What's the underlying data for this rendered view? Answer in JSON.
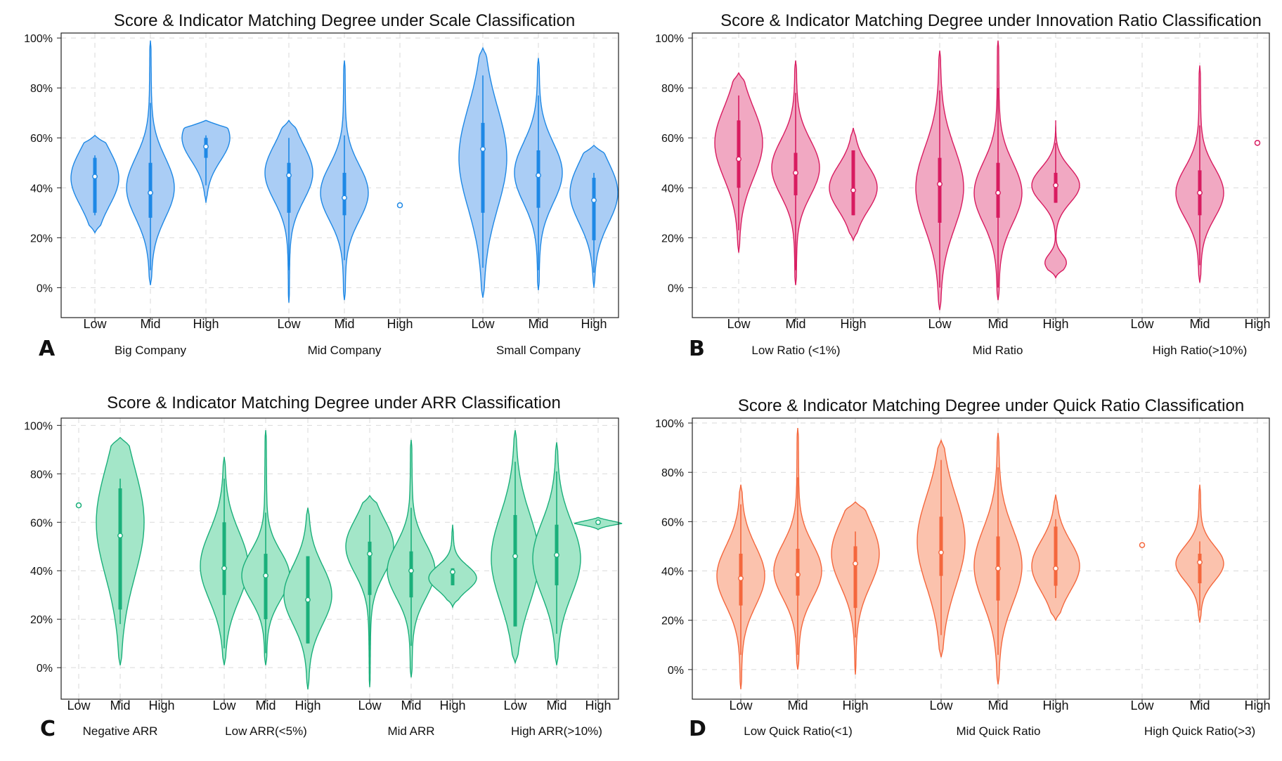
{
  "chart_data": [
    {
      "panel": "A",
      "type": "violin",
      "title": "Score & Indicator Matching Degree under Scale Classification",
      "ylim": [
        -0.12,
        1.02
      ],
      "yticks": [
        "0%",
        "20%",
        "40%",
        "60%",
        "80%",
        "100%"
      ],
      "color": "#1e88e5",
      "fill": "#aacdf5",
      "groups": [
        {
          "label": "Big Company",
          "levels": [
            {
              "label": "Low",
              "min": 0.22,
              "q1": 0.3,
              "median": 0.445,
              "q3": 0.52,
              "max": 0.61,
              "wlo": 0.29,
              "whi": 0.53,
              "peak": 0.44,
              "spread": 0.11,
              "kind": "normal"
            },
            {
              "label": "Mid",
              "min": 0.01,
              "q1": 0.28,
              "median": 0.38,
              "q3": 0.5,
              "max": 0.99,
              "wlo": 0.07,
              "whi": 0.74,
              "peak": 0.4,
              "spread": 0.12,
              "kind": "normal"
            },
            {
              "label": "High",
              "min": 0.34,
              "q1": 0.52,
              "median": 0.565,
              "q3": 0.6,
              "max": 0.67,
              "wlo": 0.41,
              "whi": 0.61,
              "peak": 0.6,
              "spread": 0.09,
              "kind": "normal"
            }
          ]
        },
        {
          "label": "Mid Company",
          "levels": [
            {
              "label": "Low",
              "min": -0.06,
              "q1": 0.3,
              "median": 0.45,
              "q3": 0.5,
              "max": 0.67,
              "wlo": 0.07,
              "whi": 0.6,
              "peak": 0.46,
              "spread": 0.11,
              "kind": "normal"
            },
            {
              "label": "Mid",
              "min": -0.05,
              "q1": 0.29,
              "median": 0.36,
              "q3": 0.46,
              "max": 0.91,
              "wlo": 0.11,
              "whi": 0.61,
              "peak": 0.38,
              "spread": 0.11,
              "kind": "normal"
            },
            {
              "label": "High",
              "point": 0.33,
              "kind": "point"
            }
          ]
        },
        {
          "label": "Small Company",
          "levels": [
            {
              "label": "Low",
              "min": -0.04,
              "q1": 0.3,
              "median": 0.555,
              "q3": 0.66,
              "max": 0.96,
              "wlo": 0.08,
              "whi": 0.85,
              "peak": 0.52,
              "spread": 0.2,
              "kind": "normal"
            },
            {
              "label": "Mid",
              "min": -0.01,
              "q1": 0.32,
              "median": 0.45,
              "q3": 0.55,
              "max": 0.92,
              "wlo": 0.07,
              "whi": 0.77,
              "peak": 0.46,
              "spread": 0.12,
              "kind": "normal"
            },
            {
              "label": "High",
              "min": 0.0,
              "q1": 0.19,
              "median": 0.35,
              "q3": 0.44,
              "max": 0.57,
              "wlo": 0.06,
              "whi": 0.46,
              "peak": 0.38,
              "spread": 0.12,
              "kind": "normal"
            }
          ]
        }
      ]
    },
    {
      "panel": "B",
      "type": "violin",
      "title": "Score & Indicator Matching Degree under Innovation Ratio Classification",
      "ylim": [
        -0.12,
        1.02
      ],
      "yticks": [
        "0%",
        "20%",
        "40%",
        "60%",
        "80%",
        "100%"
      ],
      "color": "#d81b60",
      "fill": "#f1a8c2",
      "groups": [
        {
          "label": "Low Ratio (<1%)",
          "levels": [
            {
              "label": "Low",
              "min": 0.14,
              "q1": 0.4,
              "median": 0.515,
              "q3": 0.67,
              "max": 0.86,
              "wlo": 0.23,
              "whi": 0.77,
              "peak": 0.58,
              "spread": 0.14,
              "kind": "normal"
            },
            {
              "label": "Mid",
              "min": 0.01,
              "q1": 0.37,
              "median": 0.46,
              "q3": 0.54,
              "max": 0.91,
              "wlo": 0.07,
              "whi": 0.78,
              "peak": 0.48,
              "spread": 0.11,
              "kind": "normal"
            },
            {
              "label": "High",
              "min": 0.19,
              "q1": 0.29,
              "median": 0.39,
              "q3": 0.55,
              "max": 0.64,
              "wlo": 0.29,
              "whi": 0.55,
              "peak": 0.4,
              "spread": 0.09,
              "kind": "normal"
            }
          ]
        },
        {
          "label": "Mid Ratio",
          "levels": [
            {
              "label": "Low",
              "min": -0.09,
              "q1": 0.26,
              "median": 0.415,
              "q3": 0.52,
              "max": 0.95,
              "wlo": 0.0,
              "whi": 0.79,
              "peak": 0.4,
              "spread": 0.16,
              "kind": "normal"
            },
            {
              "label": "Mid",
              "min": -0.05,
              "q1": 0.28,
              "median": 0.38,
              "q3": 0.5,
              "max": 0.99,
              "wlo": 0.0,
              "whi": 0.8,
              "peak": 0.38,
              "spread": 0.12,
              "kind": "normal"
            },
            {
              "label": "High",
              "min": 0.04,
              "q1": 0.34,
              "median": 0.41,
              "q3": 0.46,
              "max": 0.67,
              "wlo": 0.34,
              "whi": 0.58,
              "peak": 0.41,
              "spread": 0.07,
              "kind": "bimodal"
            }
          ]
        },
        {
          "label": "High Ratio(>10%)",
          "levels": [
            {
              "label": "Low",
              "kind": "empty"
            },
            {
              "label": "Mid",
              "min": 0.02,
              "q1": 0.29,
              "median": 0.38,
              "q3": 0.47,
              "max": 0.89,
              "wlo": 0.09,
              "whi": 0.65,
              "peak": 0.38,
              "spread": 0.1,
              "kind": "normal"
            },
            {
              "label": "High",
              "point": 0.58,
              "kind": "point"
            }
          ]
        }
      ]
    },
    {
      "panel": "C",
      "type": "violin",
      "title": "Score & Indicator Matching Degree under ARR Classification",
      "ylim": [
        -0.13,
        1.03
      ],
      "yticks": [
        "0%",
        "20%",
        "40%",
        "60%",
        "80%",
        "100%"
      ],
      "color": "#1aaf7a",
      "fill": "#a3e6c8",
      "groups": [
        {
          "label": "Negative ARR",
          "levels": [
            {
              "label": "Low",
              "point": 0.67,
              "kind": "point"
            },
            {
              "label": "Mid",
              "min": 0.01,
              "q1": 0.24,
              "median": 0.545,
              "q3": 0.74,
              "max": 0.95,
              "wlo": 0.18,
              "whi": 0.78,
              "peak": 0.6,
              "spread": 0.22,
              "kind": "normal"
            },
            {
              "label": "High",
              "kind": "empty"
            }
          ]
        },
        {
          "label": "Low ARR(<5%)",
          "levels": [
            {
              "label": "Low",
              "min": 0.01,
              "q1": 0.3,
              "median": 0.41,
              "q3": 0.6,
              "max": 0.87,
              "wlo": 0.08,
              "whi": 0.78,
              "peak": 0.42,
              "spread": 0.14,
              "kind": "normal"
            },
            {
              "label": "Mid",
              "min": 0.01,
              "q1": 0.2,
              "median": 0.38,
              "q3": 0.47,
              "max": 0.98,
              "wlo": 0.06,
              "whi": 0.64,
              "peak": 0.38,
              "spread": 0.1,
              "kind": "normal"
            },
            {
              "label": "High",
              "min": -0.09,
              "q1": 0.1,
              "median": 0.28,
              "q3": 0.46,
              "max": 0.66,
              "wlo": 0.1,
              "whi": 0.46,
              "peak": 0.3,
              "spread": 0.12,
              "kind": "normal"
            }
          ]
        },
        {
          "label": "Mid ARR",
          "levels": [
            {
              "label": "Low",
              "min": -0.08,
              "q1": 0.3,
              "median": 0.47,
              "q3": 0.52,
              "max": 0.71,
              "wlo": 0.01,
              "whi": 0.63,
              "peak": 0.5,
              "spread": 0.11,
              "kind": "normal"
            },
            {
              "label": "Mid",
              "min": -0.04,
              "q1": 0.29,
              "median": 0.4,
              "q3": 0.48,
              "max": 0.94,
              "wlo": 0.09,
              "whi": 0.66,
              "peak": 0.4,
              "spread": 0.11,
              "kind": "normal"
            },
            {
              "label": "High",
              "min": 0.25,
              "q1": 0.34,
              "median": 0.395,
              "q3": 0.41,
              "max": 0.59,
              "wlo": 0.34,
              "whi": 0.41,
              "peak": 0.37,
              "spread": 0.05,
              "kind": "normal"
            }
          ]
        },
        {
          "label": "High ARR(>10%)",
          "levels": [
            {
              "label": "Low",
              "min": 0.02,
              "q1": 0.17,
              "median": 0.46,
              "q3": 0.63,
              "max": 0.98,
              "wlo": 0.17,
              "whi": 0.85,
              "peak": 0.45,
              "spread": 0.18,
              "kind": "normal"
            },
            {
              "label": "Mid",
              "min": 0.01,
              "q1": 0.34,
              "median": 0.465,
              "q3": 0.59,
              "max": 0.93,
              "wlo": 0.14,
              "whi": 0.81,
              "peak": 0.45,
              "spread": 0.15,
              "kind": "normal"
            },
            {
              "label": "High",
              "min": 0.57,
              "q1": 0.59,
              "median": 0.6,
              "q3": 0.61,
              "max": 0.62,
              "wlo": 0.59,
              "whi": 0.61,
              "peak": 0.6,
              "spread": 0.02,
              "kind": "normal"
            }
          ]
        }
      ]
    },
    {
      "panel": "D",
      "type": "violin",
      "title": "Score & Indicator Matching Degree under Quick Ratio Classification",
      "ylim": [
        -0.12,
        1.02
      ],
      "yticks": [
        "0%",
        "20%",
        "40%",
        "60%",
        "80%",
        "100%"
      ],
      "color": "#f4673d",
      "fill": "#fbc2ad",
      "groups": [
        {
          "label": "Low Quick Ratio(<1)",
          "levels": [
            {
              "label": "Low",
              "min": -0.08,
              "q1": 0.26,
              "median": 0.37,
              "q3": 0.47,
              "max": 0.75,
              "wlo": 0.06,
              "whi": 0.67,
              "peak": 0.38,
              "spread": 0.12,
              "kind": "normal"
            },
            {
              "label": "Mid",
              "min": 0.0,
              "q1": 0.3,
              "median": 0.385,
              "q3": 0.49,
              "max": 0.98,
              "wlo": 0.06,
              "whi": 0.78,
              "peak": 0.4,
              "spread": 0.11,
              "kind": "normal"
            },
            {
              "label": "High",
              "min": -0.02,
              "q1": 0.25,
              "median": 0.43,
              "q3": 0.5,
              "max": 0.68,
              "wlo": 0.13,
              "whi": 0.56,
              "peak": 0.47,
              "spread": 0.13,
              "kind": "normal"
            }
          ]
        },
        {
          "label": "Mid Quick Ratio",
          "levels": [
            {
              "label": "Low",
              "min": 0.05,
              "q1": 0.38,
              "median": 0.475,
              "q3": 0.62,
              "max": 0.93,
              "wlo": 0.14,
              "whi": 0.85,
              "peak": 0.52,
              "spread": 0.18,
              "kind": "normal"
            },
            {
              "label": "Mid",
              "min": -0.06,
              "q1": 0.28,
              "median": 0.41,
              "q3": 0.54,
              "max": 0.96,
              "wlo": 0.06,
              "whi": 0.82,
              "peak": 0.42,
              "spread": 0.15,
              "kind": "normal"
            },
            {
              "label": "High",
              "min": 0.2,
              "q1": 0.34,
              "median": 0.41,
              "q3": 0.58,
              "max": 0.71,
              "wlo": 0.29,
              "whi": 0.61,
              "peak": 0.42,
              "spread": 0.1,
              "kind": "normal"
            }
          ]
        },
        {
          "label": "High Quick Ratio(>3)",
          "levels": [
            {
              "label": "Low",
              "point": 0.505,
              "kind": "point"
            },
            {
              "label": "Mid",
              "min": 0.19,
              "q1": 0.35,
              "median": 0.435,
              "q3": 0.47,
              "max": 0.75,
              "wlo": 0.24,
              "whi": 0.52,
              "peak": 0.43,
              "spread": 0.07,
              "kind": "normal"
            },
            {
              "label": "High",
              "kind": "empty"
            }
          ]
        }
      ]
    }
  ]
}
